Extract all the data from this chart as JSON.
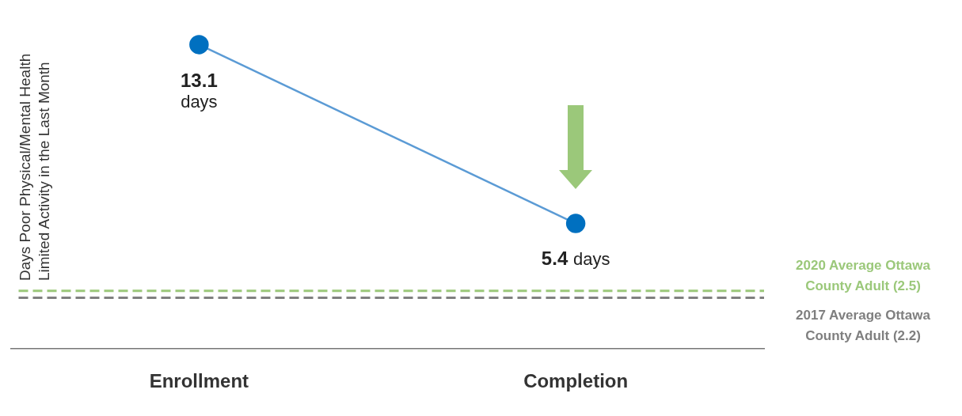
{
  "chart_data": {
    "type": "line",
    "ylabel": "Days Poor Physical/Mental Health Limited Activity in the Last Month",
    "categories": [
      "Enrollment",
      "Completion"
    ],
    "series": [
      {
        "color": "#0070c0",
        "values": [
          13.1,
          5.4
        ],
        "value_labels": [
          "13.1 days",
          "5.4 days"
        ]
      }
    ],
    "marker": "circle",
    "legend": false,
    "grid": false,
    "tick_labels": "x",
    "ref_lines": [
      {
        "axis": "y",
        "value": 2.5,
        "label": "2020 Average Ottawa County Adult (2.5)",
        "color": "#9bc87a",
        "line_style": "dashed"
      },
      {
        "axis": "y",
        "value": 2.2,
        "label": "2017 Average Ottawa County Adult (2.2)",
        "color": "#7f7f7f",
        "line_style": "dashed"
      }
    ]
  }
}
